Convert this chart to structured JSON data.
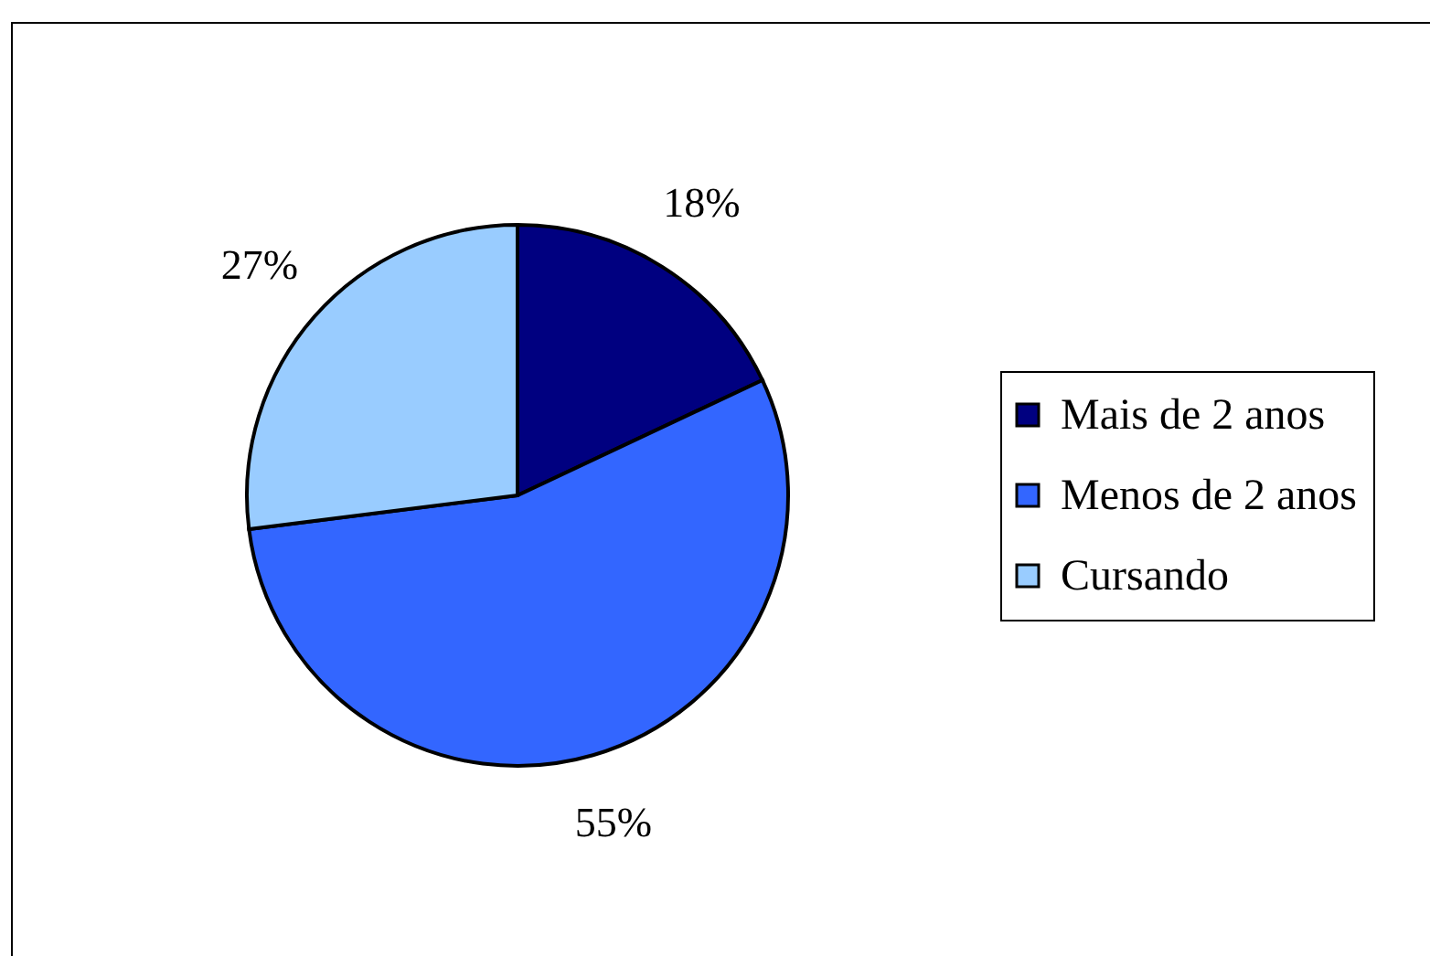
{
  "chart_data": {
    "type": "pie",
    "categories": [
      "Mais de 2 anos",
      "Menos de 2 anos",
      "Cursando"
    ],
    "values": [
      18,
      55,
      27
    ],
    "colors": [
      "#000080",
      "#3366ff",
      "#99ccff"
    ],
    "value_labels": [
      "18%",
      "55%",
      "27%"
    ],
    "legend": "right"
  }
}
